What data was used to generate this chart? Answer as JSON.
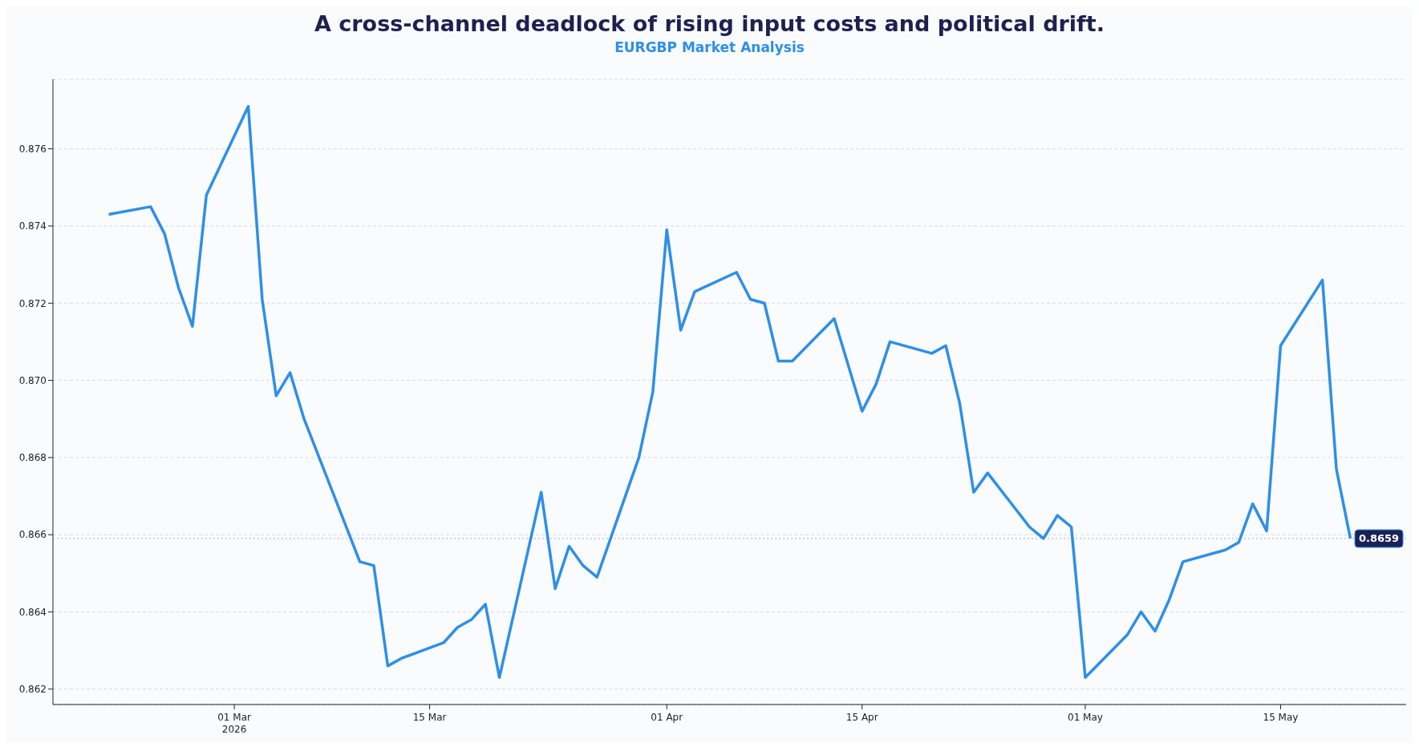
{
  "chart_data": {
    "type": "line",
    "title": "A cross-channel deadlock of rising input costs and political drift.",
    "subtitle": "EURGBP Market Analysis",
    "x": [
      "2026-02-20",
      "2026-02-23",
      "2026-02-24",
      "2026-02-25",
      "2026-02-26",
      "2026-02-27",
      "2026-03-02",
      "2026-03-03",
      "2026-03-04",
      "2026-03-05",
      "2026-03-06",
      "2026-03-10",
      "2026-03-11",
      "2026-03-12",
      "2026-03-13",
      "2026-03-16",
      "2026-03-17",
      "2026-03-18",
      "2026-03-19",
      "2026-03-20",
      "2026-03-23",
      "2026-03-24",
      "2026-03-25",
      "2026-03-26",
      "2026-03-27",
      "2026-03-30",
      "2026-03-31",
      "2026-04-01",
      "2026-04-02",
      "2026-04-03",
      "2026-04-06",
      "2026-04-07",
      "2026-04-08",
      "2026-04-09",
      "2026-04-10",
      "2026-04-13",
      "2026-04-15",
      "2026-04-16",
      "2026-04-17",
      "2026-04-20",
      "2026-04-21",
      "2026-04-22",
      "2026-04-23",
      "2026-04-24",
      "2026-04-27",
      "2026-04-28",
      "2026-04-29",
      "2026-04-30",
      "2026-05-01",
      "2026-05-04",
      "2026-05-05",
      "2026-05-06",
      "2026-05-07",
      "2026-05-08",
      "2026-05-11",
      "2026-05-12",
      "2026-05-13",
      "2026-05-14",
      "2026-05-15",
      "2026-05-18",
      "2026-05-19",
      "2026-05-20"
    ],
    "series": [
      {
        "color": "#2e8fe8",
        "values": [
          0.8743,
          0.8745,
          0.8738,
          0.8724,
          0.8714,
          0.8748,
          0.8771,
          0.8721,
          0.8696,
          0.8702,
          0.869,
          0.8653,
          0.8652,
          0.8626,
          0.8628,
          0.8632,
          0.8636,
          0.8638,
          0.8642,
          0.8623,
          0.8671,
          0.8646,
          0.8657,
          0.8652,
          0.8649,
          0.868,
          0.8697,
          0.8739,
          0.8713,
          0.8723,
          0.8728,
          0.8721,
          0.872,
          0.8705,
          0.8705,
          0.8716,
          0.8692,
          0.8699,
          0.871,
          0.8707,
          0.8709,
          0.8694,
          0.8671,
          0.8676,
          0.8662,
          0.8659,
          0.8665,
          0.8662,
          0.8623,
          0.8634,
          0.864,
          0.8635,
          0.8643,
          0.8653,
          0.8656,
          0.8658,
          0.8668,
          0.8661,
          0.8709,
          0.8726,
          0.8677,
          0.8659
        ]
      }
    ],
    "xlim": [
      "2026-02-16",
      "2026-05-24"
    ],
    "xticks": [
      {
        "value": "2026-03-01",
        "label": "01 Mar\n2026"
      },
      {
        "value": "2026-03-15",
        "label": "15 Mar"
      },
      {
        "value": "2026-04-01",
        "label": "01 Apr"
      },
      {
        "value": "2026-04-15",
        "label": "15 Apr"
      },
      {
        "value": "2026-05-01",
        "label": "01 May"
      },
      {
        "value": "2026-05-15",
        "label": "15 May"
      }
    ],
    "ylim": [
      0.8616,
      0.8778
    ],
    "yticks": [
      {
        "value": 0.862,
        "label": "0.862"
      },
      {
        "value": 0.864,
        "label": "0.864"
      },
      {
        "value": 0.866,
        "label": "0.866"
      },
      {
        "value": 0.868,
        "label": "0.868"
      },
      {
        "value": 0.87,
        "label": "0.870"
      },
      {
        "value": 0.872,
        "label": "0.872"
      },
      {
        "value": 0.874,
        "label": "0.874"
      },
      {
        "value": 0.876,
        "label": "0.876"
      }
    ],
    "ref_lines": [
      {
        "axis": "y",
        "value": 0.8659,
        "label": "0.8659",
        "color": "#1b2157",
        "line_style": "dotted"
      }
    ],
    "grid": "y",
    "legend": false,
    "marker": "none",
    "line_style": "solid"
  }
}
